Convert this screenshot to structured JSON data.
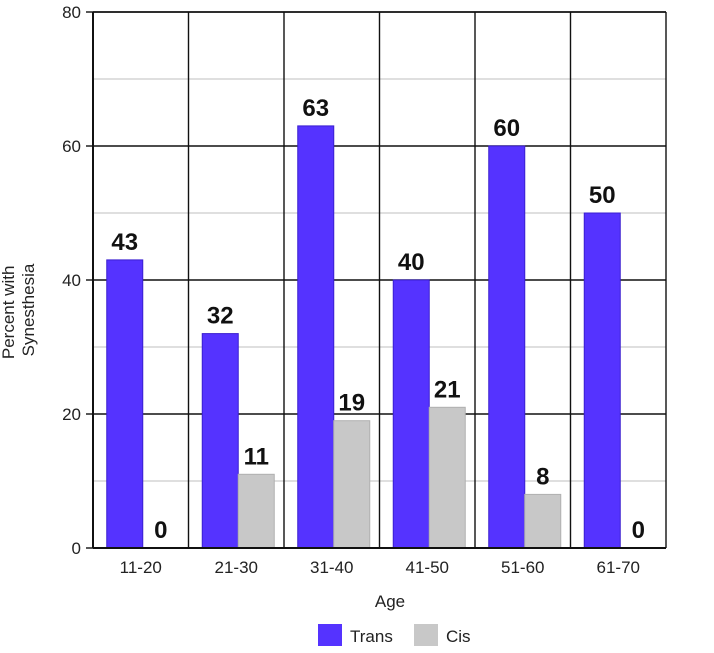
{
  "chart_data": {
    "type": "bar",
    "categories": [
      "11-20",
      "21-30",
      "31-40",
      "41-50",
      "51-60",
      "61-70"
    ],
    "series": [
      {
        "name": "Trans",
        "values": [
          43,
          32,
          63,
          40,
          60,
          50
        ],
        "labels": [
          "43",
          "32",
          "63",
          "40",
          "60",
          "50"
        ],
        "color": "#5533ff"
      },
      {
        "name": "Cis",
        "values": [
          0,
          11,
          19,
          21,
          8,
          0
        ],
        "labels": [
          "0",
          "11",
          "19",
          "21",
          "8",
          "0"
        ],
        "color": "#c8c8c8"
      }
    ],
    "title": "",
    "xlabel": "Age",
    "ylabel_lines": [
      "Percent with",
      "Synesthesia"
    ],
    "ylim": [
      0,
      80
    ],
    "yticks": [
      0,
      20,
      40,
      60,
      80
    ],
    "ytick_labels": [
      "0",
      "20",
      "40",
      "60",
      "80"
    ],
    "grid": true,
    "legend_position": "bottom-center"
  }
}
